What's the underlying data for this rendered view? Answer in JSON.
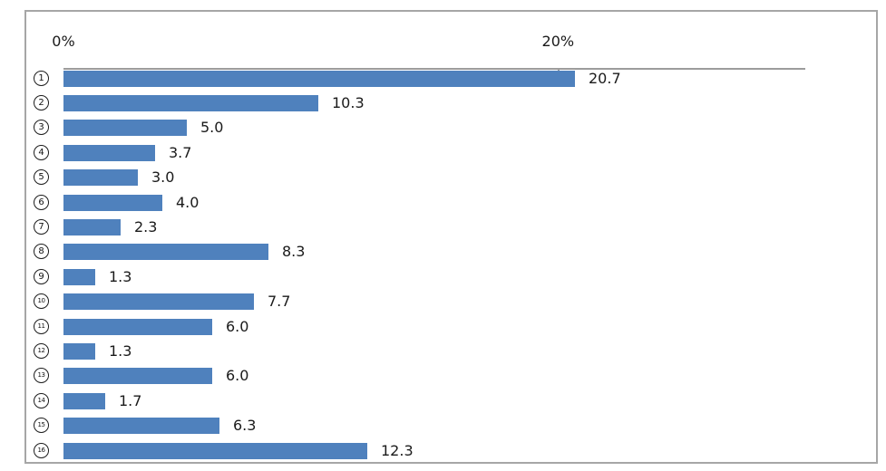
{
  "chart_data": {
    "type": "bar",
    "orientation": "horizontal",
    "title": "",
    "xlabel": "",
    "ylabel": "",
    "categories": [
      "①",
      "②",
      "③",
      "④",
      "⑤",
      "⑥",
      "⑦",
      "⑧",
      "⑨",
      "⑩",
      "⑪",
      "⑫",
      "⑬",
      "⑭",
      "⑮",
      "⑯"
    ],
    "values": [
      20.7,
      10.3,
      5.0,
      3.7,
      3.0,
      4.0,
      2.3,
      8.3,
      1.3,
      7.7,
      6.0,
      1.3,
      6.0,
      1.7,
      6.3,
      12.3
    ],
    "data_labels": [
      "20.7",
      "10.3",
      "5.0",
      "3.7",
      "3.0",
      "4.0",
      "2.3",
      "8.3",
      "1.3",
      "7.7",
      "6.0",
      "1.3",
      "6.0",
      "1.7",
      "6.3",
      "12.3"
    ],
    "x_ticks": [
      {
        "label": "0%",
        "value": 0
      },
      {
        "label": "20%",
        "value": 20
      }
    ],
    "xlim": [
      0,
      30
    ],
    "axis_position": "top",
    "grid": false,
    "legend": false,
    "bar_color": "#4f81bd",
    "axis_line_color": "#9c9c9c",
    "frame_border_color": "#a6a6a6"
  }
}
